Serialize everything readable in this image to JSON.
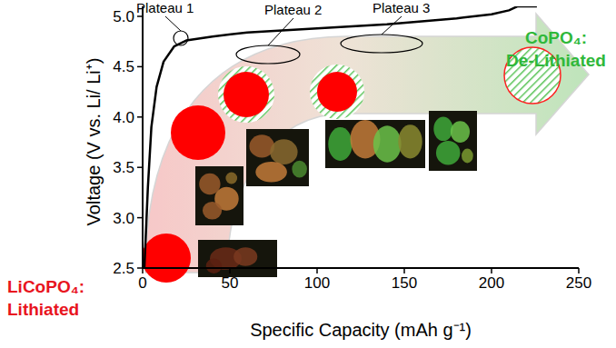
{
  "chart_data": {
    "type": "line",
    "x_label": "Specific Capacity (mAh g⁻¹)",
    "y_label": "Voltage (V vs. Li/ Li⁺)",
    "xlim": [
      0,
      250
    ],
    "ylim": [
      2.5,
      5.1
    ],
    "xticks": [
      0,
      50,
      100,
      150,
      200,
      250
    ],
    "yticks": [
      2.5,
      {
        "value": 3,
        "label": "3.0"
      },
      3.5,
      {
        "value": 4,
        "label": "4.0"
      },
      4.5,
      {
        "value": 5,
        "label": "5.0"
      }
    ],
    "x": [
      1,
      3,
      5,
      8,
      12,
      18,
      25,
      40,
      60,
      80,
      100,
      120,
      140,
      160,
      180,
      200,
      210,
      215,
      226
    ],
    "series": [
      {
        "color": "#000000",
        "values": [
          2.5,
          3.3,
          3.9,
          4.3,
          4.55,
          4.7,
          4.76,
          4.8,
          4.84,
          4.86,
          4.88,
          4.9,
          4.92,
          4.95,
          4.98,
          5.02,
          5.06,
          5.1,
          5.1
        ]
      }
    ],
    "annotations": [
      "Plateau 1",
      "Plateau 2",
      "Plateau 3"
    ],
    "start_label": [
      "LiCoPO₄:",
      "Lithiated"
    ],
    "end_label": [
      "CoPO₄:",
      "De-Lithiated"
    ]
  }
}
